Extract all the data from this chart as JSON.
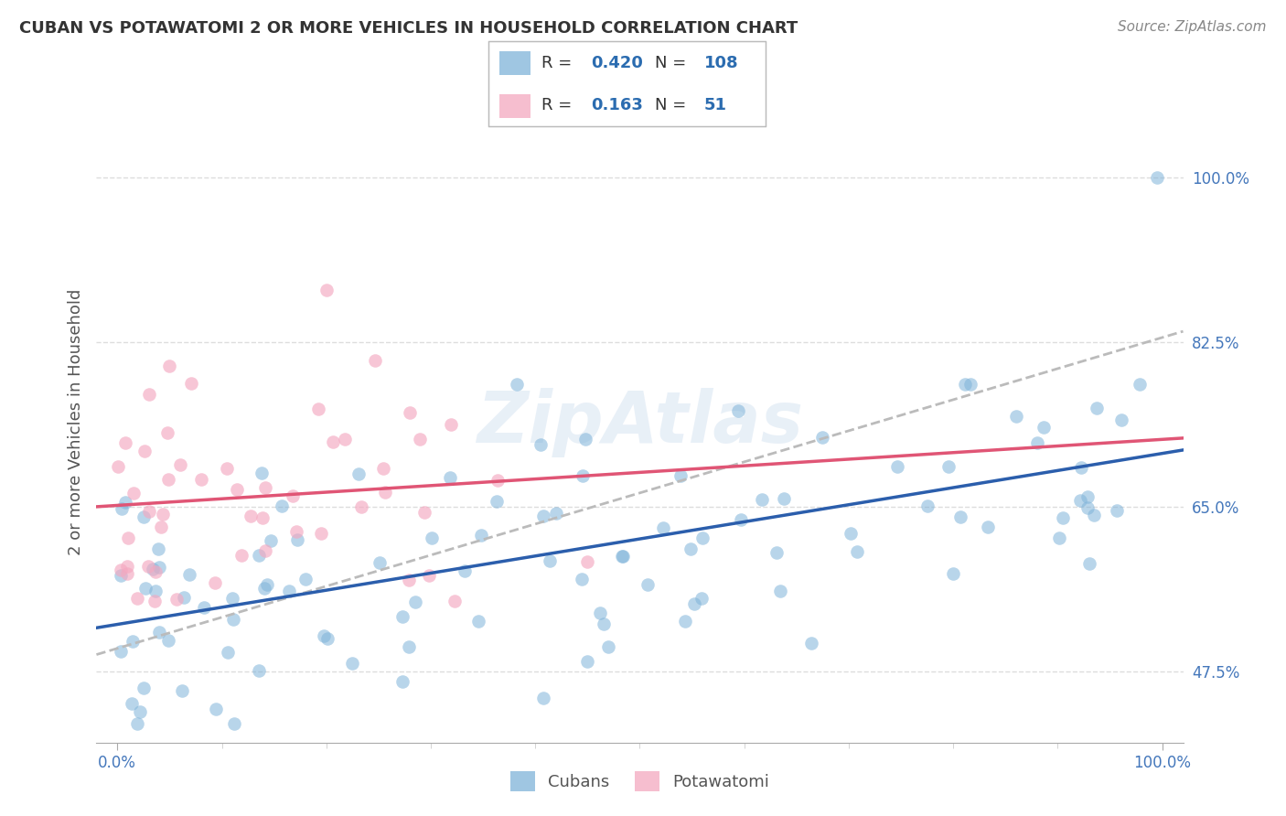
{
  "title": "CUBAN VS POTAWATOMI 2 OR MORE VEHICLES IN HOUSEHOLD CORRELATION CHART",
  "source": "Source: ZipAtlas.com",
  "ylabel": "2 or more Vehicles in Household",
  "blue_R": 0.42,
  "blue_N": 108,
  "pink_R": 0.163,
  "pink_N": 51,
  "blue_color": "#7FB3D9",
  "pink_color": "#F4A8C0",
  "blue_line_color": "#2B5EAC",
  "pink_line_color": "#E05575",
  "gray_dash_color": "#BBBBBB",
  "legend_label_blue": "Cubans",
  "legend_label_pink": "Potawatomi",
  "yticks": [
    47.5,
    65.0,
    82.5,
    100.0
  ],
  "ytick_labels": [
    "47.5%",
    "65.0%",
    "82.5%",
    "100.0%"
  ],
  "xtick_labels": [
    "0.0%",
    "100.0%"
  ],
  "title_fontsize": 13,
  "source_fontsize": 11,
  "axis_fontsize": 12,
  "ylabel_fontsize": 13
}
